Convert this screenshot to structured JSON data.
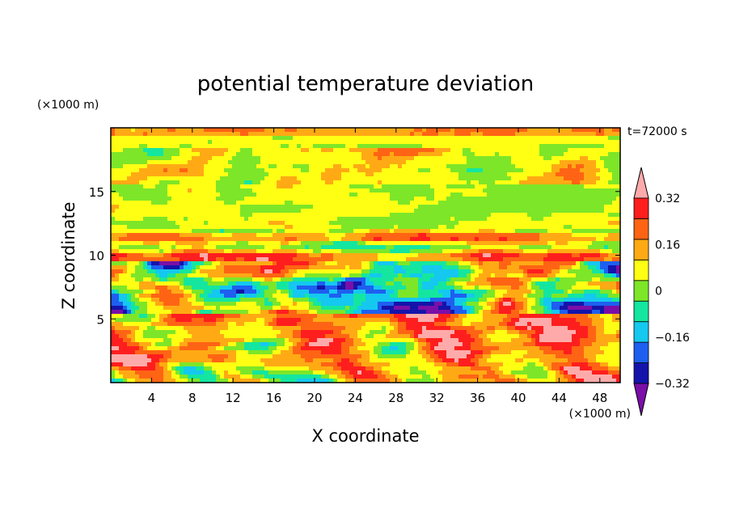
{
  "chart_data": {
    "type": "heatmap",
    "title": "potential temperature deviation",
    "xlabel": "X coordinate",
    "ylabel": "Z coordinate",
    "x_unit": "(×1000 m)",
    "y_unit": "(×1000 m)",
    "time_label": "t=72000 s",
    "xlim": [
      0,
      50
    ],
    "ylim": [
      0,
      20
    ],
    "x_ticks": [
      4,
      8,
      12,
      16,
      20,
      24,
      28,
      32,
      36,
      40,
      44,
      48
    ],
    "y_ticks": [
      5,
      10,
      15
    ],
    "colorbar": {
      "levels": [
        -0.4,
        -0.32,
        -0.24,
        -0.16,
        -0.08,
        0,
        0.08,
        0.16,
        0.24,
        0.32,
        0.4
      ],
      "labeled_levels": [
        0.32,
        0.16,
        0,
        -0.16,
        -0.32
      ],
      "label_text": [
        "0.32",
        "0.16",
        "0",
        "−0.16",
        "−0.32"
      ],
      "colors": [
        "#7a0fa8",
        "#1414aa",
        "#1e5ff0",
        "#14c8f0",
        "#14e6a0",
        "#7de628",
        "#ffff14",
        "#ffaa14",
        "#ff6414",
        "#ff1e1e",
        "#ffaaaa"
      ],
      "extend": "both"
    }
  }
}
